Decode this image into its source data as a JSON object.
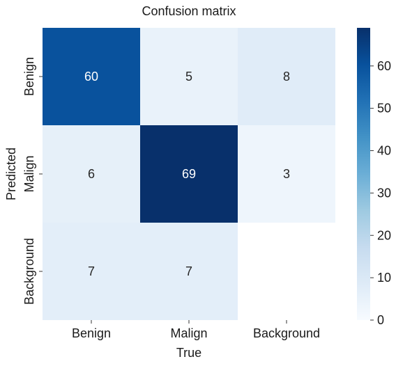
{
  "chart_data": {
    "type": "heatmap",
    "title": "Confusion matrix",
    "xlabel": "True",
    "ylabel": "Predicted",
    "x_categories": [
      "Benign",
      "Malign",
      "Background"
    ],
    "y_categories": [
      "Benign",
      "Malign",
      "Background"
    ],
    "values": [
      [
        60,
        5,
        8
      ],
      [
        6,
        69,
        3
      ],
      [
        7,
        7,
        null
      ]
    ],
    "colormap": "Blues",
    "vmin": 0,
    "vmax": 69,
    "colorbar_ticks": [
      0,
      10,
      20,
      30,
      40,
      50,
      60
    ]
  }
}
